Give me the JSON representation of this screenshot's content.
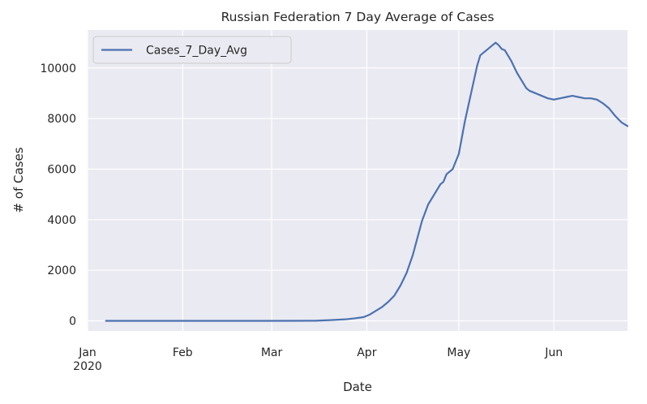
{
  "chart_data": {
    "type": "line",
    "title": "Russian Federation 7 Day Average of Cases",
    "xlabel": "Date",
    "ylabel": "# of Cases",
    "xlim": [
      "2020-01-01",
      "2020-06-25"
    ],
    "ylim": [
      -400,
      11500
    ],
    "grid": true,
    "legend_position": "top-left",
    "x_ticks": [
      {
        "date": "2020-01-01",
        "label": "Jan",
        "sublabel": "2020"
      },
      {
        "date": "2020-02-01",
        "label": "Feb",
        "sublabel": ""
      },
      {
        "date": "2020-03-01",
        "label": "Mar",
        "sublabel": ""
      },
      {
        "date": "2020-04-01",
        "label": "Apr",
        "sublabel": ""
      },
      {
        "date": "2020-05-01",
        "label": "May",
        "sublabel": ""
      },
      {
        "date": "2020-06-01",
        "label": "Jun",
        "sublabel": ""
      }
    ],
    "y_ticks": [
      {
        "value": 0,
        "label": "0"
      },
      {
        "value": 2000,
        "label": "2000"
      },
      {
        "value": 4000,
        "label": "4000"
      },
      {
        "value": 6000,
        "label": "6000"
      },
      {
        "value": 8000,
        "label": "8000"
      },
      {
        "value": 10000,
        "label": "10000"
      }
    ],
    "series": [
      {
        "name": "Cases_7_Day_Avg",
        "color": "#4c72b0",
        "x": [
          "2020-01-07",
          "2020-02-01",
          "2020-03-01",
          "2020-03-15",
          "2020-03-20",
          "2020-03-25",
          "2020-03-28",
          "2020-03-31",
          "2020-04-02",
          "2020-04-04",
          "2020-04-06",
          "2020-04-08",
          "2020-04-10",
          "2020-04-12",
          "2020-04-14",
          "2020-04-16",
          "2020-04-18",
          "2020-04-19",
          "2020-04-21",
          "2020-04-23",
          "2020-04-25",
          "2020-04-26",
          "2020-04-27",
          "2020-04-29",
          "2020-05-01",
          "2020-05-03",
          "2020-05-05",
          "2020-05-07",
          "2020-05-08",
          "2020-05-09",
          "2020-05-10",
          "2020-05-11",
          "2020-05-12",
          "2020-05-13",
          "2020-05-14",
          "2020-05-15",
          "2020-05-16",
          "2020-05-17",
          "2020-05-18",
          "2020-05-20",
          "2020-05-22",
          "2020-05-23",
          "2020-05-24",
          "2020-05-26",
          "2020-05-28",
          "2020-05-30",
          "2020-06-01",
          "2020-06-03",
          "2020-06-05",
          "2020-06-07",
          "2020-06-09",
          "2020-06-11",
          "2020-06-13",
          "2020-06-15",
          "2020-06-17",
          "2020-06-19",
          "2020-06-21",
          "2020-06-23",
          "2020-06-25"
        ],
        "y": [
          0,
          0,
          0,
          5,
          30,
          60,
          100,
          150,
          250,
          400,
          550,
          750,
          1000,
          1400,
          1900,
          2600,
          3500,
          3950,
          4600,
          5000,
          5400,
          5500,
          5800,
          6000,
          6600,
          7900,
          9000,
          10100,
          10500,
          10600,
          10700,
          10800,
          10900,
          11000,
          10900,
          10750,
          10700,
          10500,
          10300,
          9800,
          9400,
          9200,
          9100,
          9000,
          8900,
          8800,
          8750,
          8800,
          8850,
          8900,
          8850,
          8800,
          8800,
          8750,
          8600,
          8400,
          8100,
          7850,
          7700
        ]
      }
    ]
  }
}
